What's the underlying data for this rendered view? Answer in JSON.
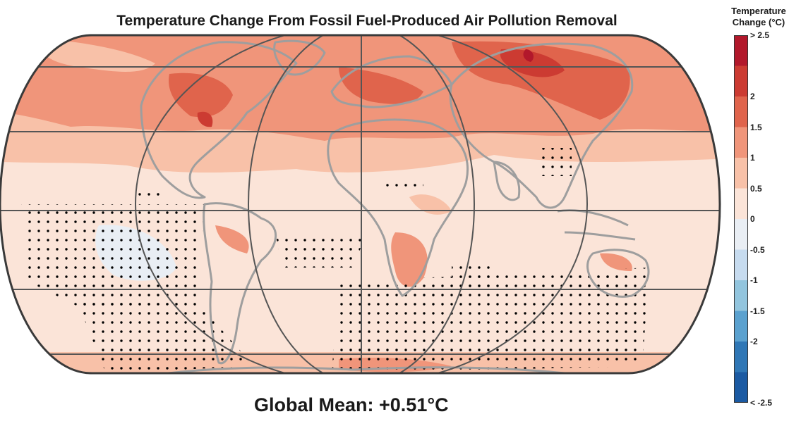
{
  "title": "Temperature Change From Fossil Fuel-Produced Air Pollution Removal",
  "global_mean": "Global Mean: +0.51°C",
  "legend": {
    "title_line1": "Temperature",
    "title_line2": "Change (°C)",
    "labels": [
      "> 2.5",
      "2",
      "1.5",
      "1",
      "0.5",
      "0",
      "-0.5",
      "-1",
      "-1.5",
      "-2",
      "< -2.5"
    ],
    "colors": [
      "#b2182b",
      "#cc3b32",
      "#e0644c",
      "#f0957a",
      "#f8c1a8",
      "#fbe4d8",
      "#e9eef4",
      "#c6dbef",
      "#92c5de",
      "#5aa1cf",
      "#2f77b6",
      "#1b5aa3"
    ]
  },
  "map": {
    "ocean_color": "#fbe4d8",
    "coast_color": "#9e9e9e",
    "grid_color": "#555555",
    "stipple_color": "#000000"
  }
}
